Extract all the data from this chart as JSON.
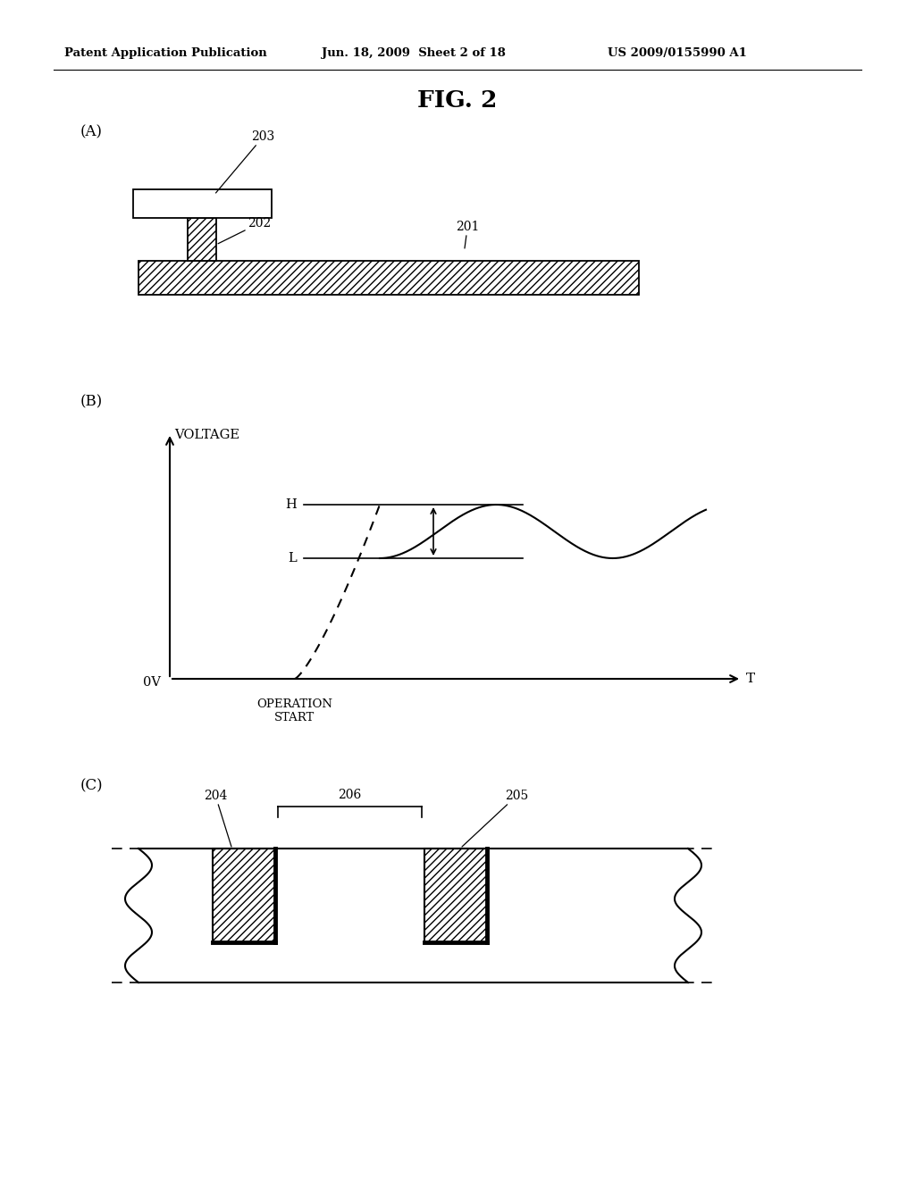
{
  "fig_title": "FIG. 2",
  "header_left": "Patent Application Publication",
  "header_center": "Jun. 18, 2009  Sheet 2 of 18",
  "header_right": "US 2009/0155990 A1",
  "bg_color": "#ffffff",
  "label_A": "(A)",
  "label_B": "(B)",
  "label_C": "(C)",
  "ref_201": "201",
  "ref_202": "202",
  "ref_203": "203",
  "ref_204": "204",
  "ref_205": "205",
  "ref_206": "206",
  "voltage_label": "VOLTAGE",
  "ov_label": "0V",
  "t_label": "T",
  "h_label": "H",
  "l_label": "L",
  "op_start_label": "OPERATION\nSTART",
  "line_color": "#000000",
  "hatch_color": "#000000"
}
